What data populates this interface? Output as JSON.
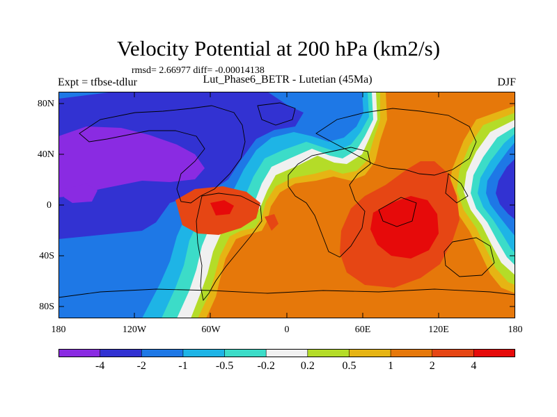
{
  "plot": {
    "title": "Velocity Potential at 200 hPa (km2/s)",
    "stats": "rmsd= 2.66977 diff= -0.00014138",
    "left_label": "Expt = tfbse-tdlur",
    "center_label": "Lut_Phase6_BETR - Lutetian (45Ma)",
    "right_label": "DJF"
  },
  "axes": {
    "lat_ticks": [
      "80N",
      "40N",
      "0",
      "40S",
      "80S"
    ],
    "lon_ticks": [
      "180",
      "120W",
      "60W",
      "0",
      "60E",
      "120E",
      "180"
    ]
  },
  "colorbar": {
    "labels": [
      "-4",
      "-2",
      "-1",
      "-0.5",
      "-0.2",
      "0.2",
      "0.5",
      "1",
      "2",
      "4"
    ],
    "colors": [
      "#8a2be2",
      "#3232d2",
      "#1e78e6",
      "#1eb4e6",
      "#3cdcc8",
      "#f0f0f0",
      "#b4dc28",
      "#e6b414",
      "#e6780a",
      "#e64614",
      "#e60a0a"
    ]
  },
  "map": {
    "colors": {
      "purple": "#8a2be2",
      "blue_dark": "#3232d2",
      "blue": "#1e78e6",
      "cyan": "#1eb4e6",
      "teal": "#3cdcc8",
      "white": "#f0f0f0",
      "lime": "#b4dc28",
      "gold": "#e6b414",
      "orange": "#e6780a",
      "red_orange": "#e64614",
      "red": "#e60a0a"
    }
  }
}
